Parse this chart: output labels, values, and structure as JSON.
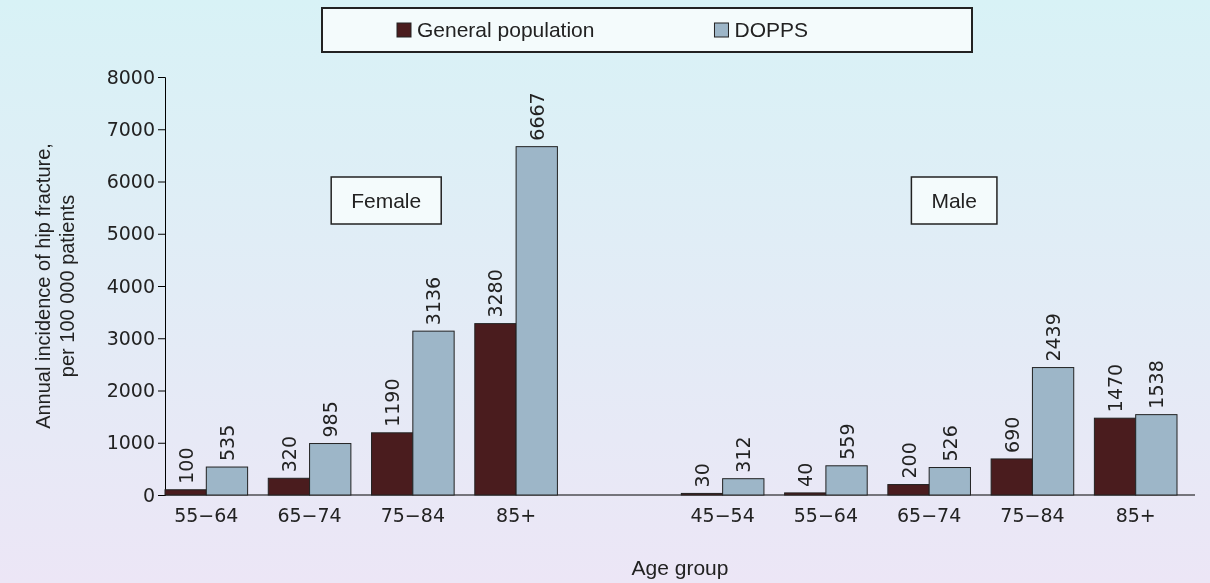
{
  "chart_data": {
    "type": "bar",
    "xlabel": "Age group",
    "ylabel": "Annual incidence of hip fracture, per 100 000 patients",
    "categories": [
      "55−64",
      "65−74",
      "75−84",
      "85+",
      null,
      "45−54",
      "55−64",
      "65−74",
      "75−84",
      "85+"
    ],
    "series": [
      {
        "name": "General population",
        "color": "#4a1c1e",
        "values": [
          100,
          320,
          1190,
          3280,
          null,
          30,
          40,
          200,
          690,
          1470
        ]
      },
      {
        "name": "DOPPS",
        "color": "#9db6c8",
        "values": [
          535,
          985,
          3136,
          6667,
          null,
          312,
          559,
          526,
          2439,
          1538
        ]
      }
    ],
    "ylim": [
      0,
      8000
    ],
    "yticks": [
      0,
      1000,
      2000,
      3000,
      4000,
      5000,
      6000,
      7000,
      8000
    ],
    "data_labels": true,
    "legend": "top",
    "grid": false,
    "annotations": [
      "Female",
      "Male"
    ]
  }
}
